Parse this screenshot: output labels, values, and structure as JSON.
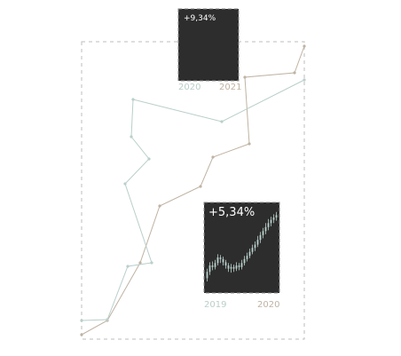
{
  "chart_data": [
    {
      "type": "line",
      "title": "",
      "xlabel": "",
      "ylabel": "",
      "grid": false,
      "legend": "none",
      "series": [
        {
          "name": "",
          "color": "#bfb3a3",
          "values": [
            [
              0,
              5
            ],
            [
              29,
              21
            ],
            [
              66,
              86
            ],
            [
              88,
              150
            ],
            [
              134,
              172
            ],
            [
              148,
              205
            ],
            [
              189,
              220
            ],
            [
              184,
              295
            ],
            [
              240,
              300
            ],
            [
              251,
              330
            ]
          ]
        },
        {
          "name": "",
          "color": "#b9cfcb",
          "values": [
            [
              0,
              21
            ],
            [
              29,
              22
            ],
            [
              52,
              82
            ],
            [
              79,
              86
            ],
            [
              49,
              175
            ],
            [
              76,
              203
            ],
            [
              56,
              228
            ],
            [
              58,
              270
            ],
            [
              158,
              245
            ],
            [
              251,
              292
            ]
          ]
        }
      ]
    },
    {
      "type": "line",
      "title": "+9,34%",
      "xticks": [
        "2020",
        "2021"
      ],
      "color": "#2d2d2d"
    },
    {
      "type": "bar",
      "subtype": "candlestick",
      "title": "+5,34%",
      "xticks": [
        "2019",
        "2020"
      ],
      "color": "#2d2d2d",
      "candle_color": "#b9cfcb",
      "values": [
        [
          0.14,
          0.22,
          0.1,
          0.26
        ],
        [
          0.22,
          0.3,
          0.18,
          0.34
        ],
        [
          0.3,
          0.28,
          0.24,
          0.35
        ],
        [
          0.28,
          0.33,
          0.25,
          0.37
        ],
        [
          0.33,
          0.4,
          0.3,
          0.44
        ],
        [
          0.4,
          0.38,
          0.33,
          0.43
        ],
        [
          0.38,
          0.34,
          0.3,
          0.41
        ],
        [
          0.34,
          0.3,
          0.26,
          0.37
        ],
        [
          0.3,
          0.26,
          0.22,
          0.33
        ],
        [
          0.26,
          0.28,
          0.21,
          0.32
        ],
        [
          0.28,
          0.26,
          0.22,
          0.31
        ],
        [
          0.26,
          0.3,
          0.23,
          0.34
        ],
        [
          0.3,
          0.28,
          0.24,
          0.33
        ],
        [
          0.28,
          0.33,
          0.25,
          0.37
        ],
        [
          0.33,
          0.38,
          0.3,
          0.42
        ],
        [
          0.38,
          0.42,
          0.35,
          0.46
        ],
        [
          0.42,
          0.47,
          0.39,
          0.51
        ],
        [
          0.47,
          0.52,
          0.44,
          0.56
        ],
        [
          0.52,
          0.56,
          0.48,
          0.6
        ],
        [
          0.56,
          0.62,
          0.53,
          0.67
        ],
        [
          0.62,
          0.68,
          0.58,
          0.72
        ],
        [
          0.68,
          0.73,
          0.64,
          0.77
        ],
        [
          0.73,
          0.78,
          0.69,
          0.83
        ],
        [
          0.78,
          0.83,
          0.74,
          0.88
        ],
        [
          0.83,
          0.87,
          0.79,
          0.91
        ],
        [
          0.87,
          0.9,
          0.83,
          0.94
        ],
        [
          0.9,
          0.93,
          0.86,
          0.97
        ]
      ]
    }
  ]
}
